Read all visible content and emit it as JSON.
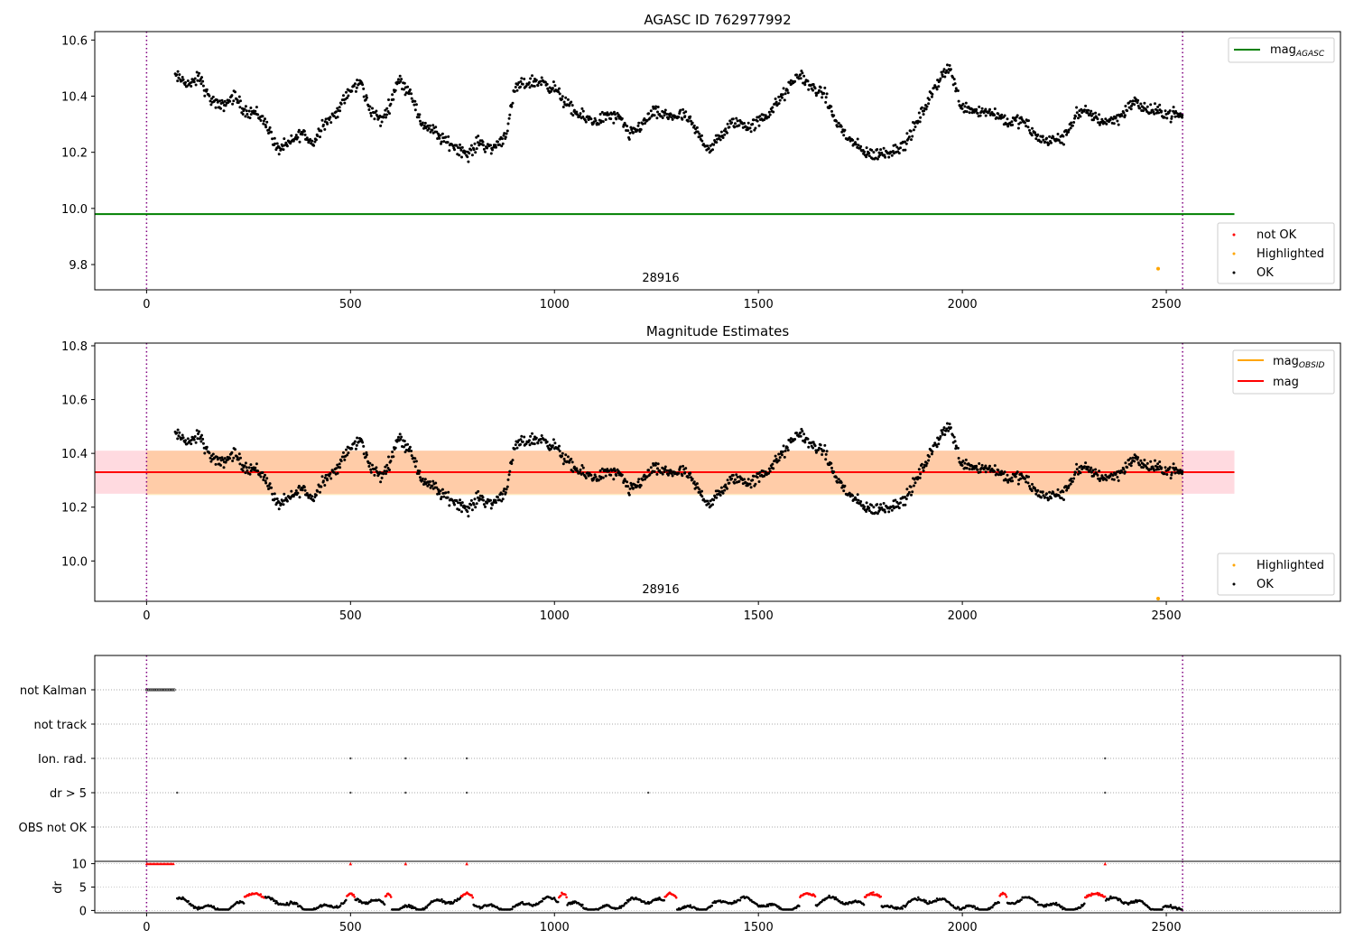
{
  "chart_data": [
    {
      "id": "panel1",
      "type": "scatter",
      "title": "AGASC ID 762977992",
      "xlim": [
        -127,
        2927
      ],
      "ylim": [
        9.71,
        10.63
      ],
      "xticks": [
        0,
        500,
        1000,
        1500,
        2000,
        2500
      ],
      "yticks": [
        9.8,
        10.0,
        10.2,
        10.4,
        10.6
      ],
      "ytick_labels": [
        "9.8",
        "10.0",
        "10.2",
        "10.4",
        "10.6"
      ],
      "obs_boundaries": [
        0,
        2540
      ],
      "obs_label": {
        "text": "28916",
        "x": 1270
      },
      "agasc_line": {
        "y": 9.98,
        "x": [
          -127,
          2667
        ],
        "color": "#008000"
      },
      "series": [
        {
          "name": "OK",
          "color": "#000000",
          "x_start": 70,
          "x_end": 2540,
          "count": 1350
        },
        {
          "name": "Highlighted",
          "color": "#ffa500",
          "points": [
            [
              2480,
              9.785
            ]
          ]
        },
        {
          "name": "not OK",
          "color": "#ff0000",
          "points": []
        }
      ],
      "legend_top": [
        {
          "label": "mag",
          "sub": "AGASC",
          "color": "#008000"
        }
      ],
      "legend_bottom": [
        {
          "label": "not OK",
          "color": "#ff0000"
        },
        {
          "label": "Highlighted",
          "color": "#ffa500"
        },
        {
          "label": "OK",
          "color": "#000000"
        }
      ]
    },
    {
      "id": "panel2",
      "type": "scatter",
      "title": "Magnitude Estimates",
      "xlim": [
        -127,
        2927
      ],
      "ylim": [
        9.85,
        10.81
      ],
      "xticks": [
        0,
        500,
        1000,
        1500,
        2000,
        2500
      ],
      "yticks": [
        10.0,
        10.2,
        10.4,
        10.6,
        10.8
      ],
      "ytick_labels": [
        "10.0",
        "10.2",
        "10.4",
        "10.6",
        "10.8"
      ],
      "obs_boundaries": [
        0,
        2540
      ],
      "obs_label": {
        "text": "28916",
        "x": 1270
      },
      "mag_line": {
        "y": 10.33,
        "band": [
          10.25,
          10.41
        ],
        "x": [
          -127,
          2667
        ],
        "color": "#ff0000"
      },
      "obsid_band": {
        "x": [
          0,
          2540
        ],
        "band": [
          10.245,
          10.41
        ],
        "color": "#ffa500"
      },
      "series": [
        {
          "name": "OK",
          "color": "#000000",
          "x_start": 70,
          "x_end": 2540,
          "count": 1350
        },
        {
          "name": "Highlighted",
          "color": "#ffa500",
          "points": [
            [
              2480,
              9.855
            ]
          ]
        }
      ],
      "legend_top": [
        {
          "label": "mag",
          "sub": "OBSID",
          "color": "#ffa500"
        },
        {
          "label": "mag",
          "sub": "",
          "color": "#ff0000"
        }
      ],
      "legend_bottom": [
        {
          "label": "Highlighted",
          "color": "#ffa500"
        },
        {
          "label": "OK",
          "color": "#000000"
        }
      ]
    },
    {
      "id": "panel3",
      "type": "scatter",
      "xlim": [
        -127,
        2927
      ],
      "flag_categories": [
        "not Kalman",
        "not track",
        "Ion. rad.",
        "dr > 5",
        "OBS not OK"
      ],
      "flags": {
        "not Kalman": {
          "x_range": [
            0,
            68
          ]
        },
        "not track": {
          "x": []
        },
        "Ion. rad.": {
          "x": [
            500,
            635,
            785,
            2350
          ]
        },
        "dr > 5": {
          "x": [
            75,
            500,
            635,
            785,
            1230,
            2350
          ]
        },
        "OBS not OK": {
          "x": []
        }
      }
    },
    {
      "id": "panel4",
      "type": "scatter",
      "xlim": [
        -127,
        2927
      ],
      "ylim": [
        -0.5,
        10.5
      ],
      "ylabel": "dr",
      "yticks": [
        0,
        5,
        10
      ],
      "ytick_labels": [
        "0",
        "5",
        "10"
      ],
      "xticks": [
        0,
        500,
        1000,
        1500,
        2000,
        2500
      ],
      "xtick_labels": [
        "0",
        "500",
        "1000",
        "1500",
        "2000",
        "2500"
      ],
      "series": [
        {
          "name": "OK",
          "color": "#000000"
        },
        {
          "name": "not OK",
          "color": "#ff0000",
          "clipped_x": [
            0,
            68
          ],
          "clipped_extra": [
            500,
            635,
            785,
            2350
          ]
        }
      ]
    }
  ]
}
